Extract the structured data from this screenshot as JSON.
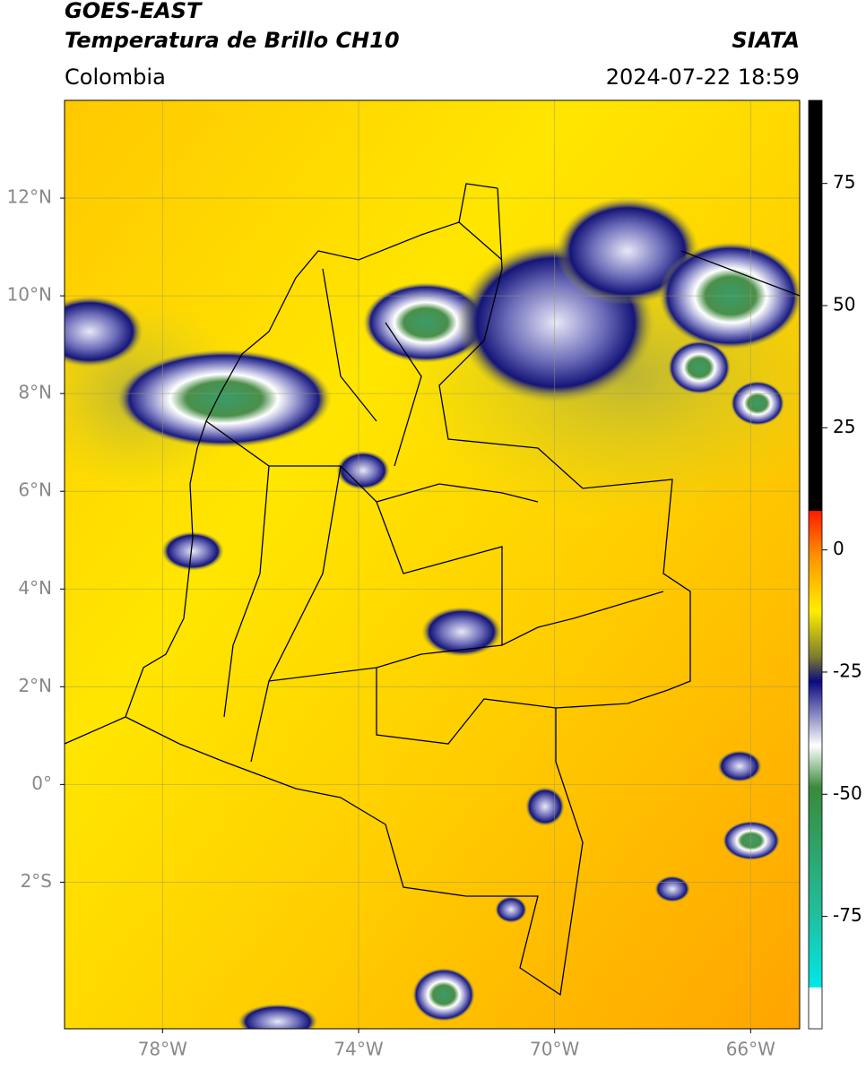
{
  "header": {
    "title": "GOES-EAST",
    "subtitle": "Temperatura de Brillo CH10",
    "region": "Colombia",
    "source": "SIATA",
    "datetime": "2024-07-22 18:59"
  },
  "map": {
    "lon_range": [
      -80,
      -65
    ],
    "lat_range": [
      -5,
      14
    ],
    "lat_ticks": [
      {
        "value": 12,
        "label": "12°N"
      },
      {
        "value": 10,
        "label": "10°N"
      },
      {
        "value": 8,
        "label": "8°N"
      },
      {
        "value": 6,
        "label": "6°N"
      },
      {
        "value": 4,
        "label": "4°N"
      },
      {
        "value": 2,
        "label": "2°N"
      },
      {
        "value": 0,
        "label": "0°"
      },
      {
        "value": -2,
        "label": "2°S"
      }
    ],
    "lon_ticks": [
      {
        "value": -78,
        "label": "78°W"
      },
      {
        "value": -74,
        "label": "74°W"
      },
      {
        "value": -70,
        "label": "70°W"
      },
      {
        "value": -66,
        "label": "66°W"
      }
    ]
  },
  "colorbar": {
    "range": [
      -98,
      92
    ],
    "ticks": [
      75,
      50,
      25,
      0,
      -25,
      -50,
      -75
    ]
  }
}
